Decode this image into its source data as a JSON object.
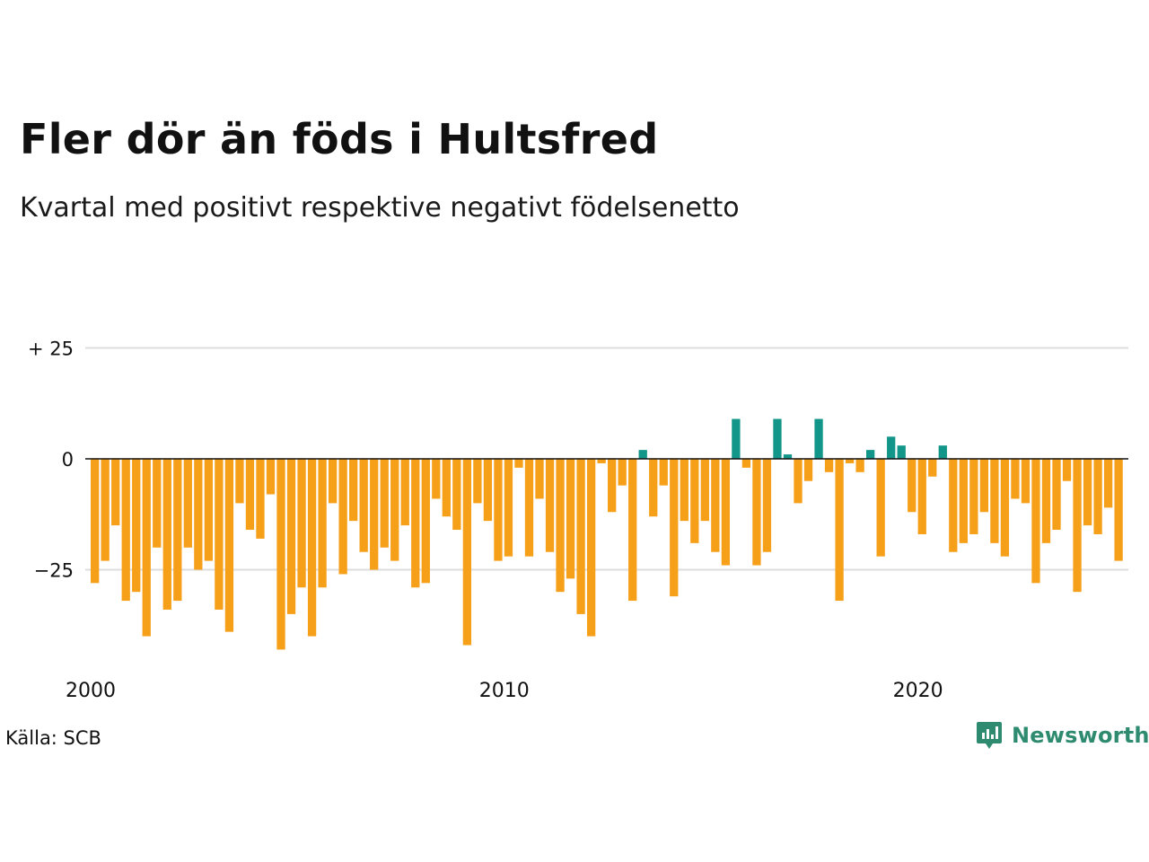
{
  "title": "Fler dör än föds i Hultsfred",
  "subtitle": "Kvartal med positivt respektive negativt födelsenetto",
  "source": "Källa: SCB",
  "brand": {
    "name": "Newsworthy",
    "icon": "newsworthy-logo-icon",
    "color": "#2e8b6f"
  },
  "colors": {
    "positive": "#12968a",
    "negative": "#f6a01a",
    "grid": "#dddddd",
    "zero_line": "#111111"
  },
  "chart_data": {
    "type": "bar",
    "title": "Fler dör än föds i Hultsfred",
    "subtitle": "Kvartal med positivt respektive negativt födelsenetto",
    "xlabel": "",
    "ylabel": "",
    "ylim": [
      -43,
      25
    ],
    "y_ticks": [
      {
        "value": 25,
        "label": "+ 25"
      },
      {
        "value": 0,
        "label": "0"
      },
      {
        "value": -25,
        "label": "−25"
      }
    ],
    "x_ticks": [
      {
        "label": "2000",
        "index": 0
      },
      {
        "label": "2010",
        "index": 40
      },
      {
        "label": "2020",
        "index": 80
      }
    ],
    "grid": true,
    "legend": "none",
    "start_year": 2000,
    "periods_per_year": 4,
    "values": [
      -28,
      -23,
      -15,
      -32,
      -30,
      -40,
      -20,
      -34,
      -32,
      -20,
      -25,
      -23,
      -34,
      -39,
      -10,
      -16,
      -18,
      -8,
      -43,
      -35,
      -29,
      -40,
      -29,
      -10,
      -26,
      -14,
      -21,
      -25,
      -20,
      -23,
      -15,
      -29,
      -28,
      -9,
      -13,
      -16,
      -42,
      -10,
      -14,
      -23,
      -22,
      -2,
      -22,
      -9,
      -21,
      -30,
      -27,
      -35,
      -40,
      -1,
      -12,
      -6,
      -32,
      2,
      -13,
      -6,
      -31,
      -14,
      -19,
      -14,
      -21,
      -24,
      9,
      -2,
      -24,
      -21,
      9,
      1,
      -10,
      -5,
      9,
      -3,
      -32,
      -1,
      -3,
      2,
      -22,
      5,
      3,
      -12,
      -17,
      -4,
      3,
      -21,
      -19,
      -17,
      -12,
      -19,
      -22,
      -9,
      -10,
      -28,
      -19,
      -16,
      -5,
      -30,
      -15,
      -17,
      -11,
      -23
    ]
  }
}
